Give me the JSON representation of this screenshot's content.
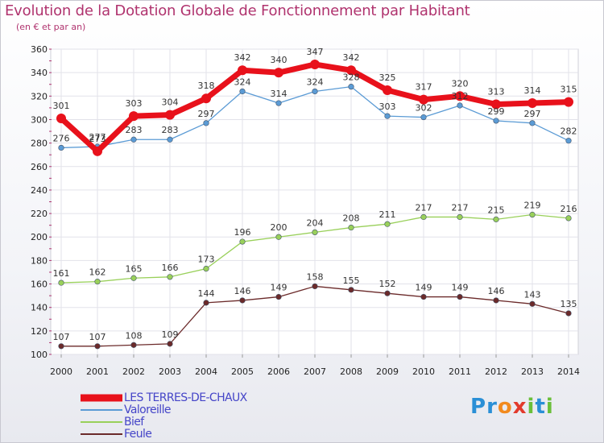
{
  "header": {
    "title": "Evolution de la Dotation Globale de Fonctionnement par Habitant",
    "subtitle": "(en € et par an)"
  },
  "logo": {
    "letters": [
      "P",
      "r",
      "o",
      "x",
      "i",
      "t",
      "i"
    ],
    "colors": [
      "#2a8fd6",
      "#2a8fd6",
      "#f28a1e",
      "#e23a2c",
      "#6abf3a",
      "#2a8fd6",
      "#6abf3a"
    ]
  },
  "chart_data": {
    "type": "line",
    "title": "Evolution de la Dotation Globale de Fonctionnement par Habitant",
    "subtitle": "(en € et par an)",
    "xlabel": "",
    "ylabel": "",
    "ylim": [
      100,
      360
    ],
    "yticks": [
      100,
      120,
      140,
      160,
      180,
      200,
      220,
      240,
      260,
      280,
      300,
      320,
      340,
      360
    ],
    "grid": true,
    "legend_position": "bottom-left",
    "x": [
      "2000",
      "2001",
      "2002",
      "2003",
      "2004",
      "2005",
      "2006",
      "2007",
      "2008",
      "2009",
      "2010",
      "2011",
      "2012",
      "2013",
      "2014"
    ],
    "series": [
      {
        "name": "LES TERRES-DE-CHAUX",
        "color": "#e8111b",
        "emphasis": true,
        "values": [
          301,
          273,
          303,
          304,
          318,
          342,
          340,
          347,
          342,
          325,
          317,
          320,
          313,
          314,
          315
        ]
      },
      {
        "name": "Valoreille",
        "color": "#5b9bd5",
        "emphasis": false,
        "values": [
          276,
          277,
          283,
          283,
          297,
          324,
          314,
          324,
          328,
          303,
          302,
          312,
          299,
          297,
          282
        ]
      },
      {
        "name": "Bief",
        "color": "#99d05a",
        "emphasis": false,
        "values": [
          161,
          162,
          165,
          166,
          173,
          196,
          200,
          204,
          208,
          211,
          217,
          217,
          215,
          219,
          216
        ]
      },
      {
        "name": "Feule",
        "color": "#6b2a2a",
        "emphasis": false,
        "values": [
          107,
          107,
          108,
          109,
          144,
          146,
          149,
          158,
          155,
          152,
          149,
          149,
          146,
          143,
          135
        ]
      }
    ]
  }
}
